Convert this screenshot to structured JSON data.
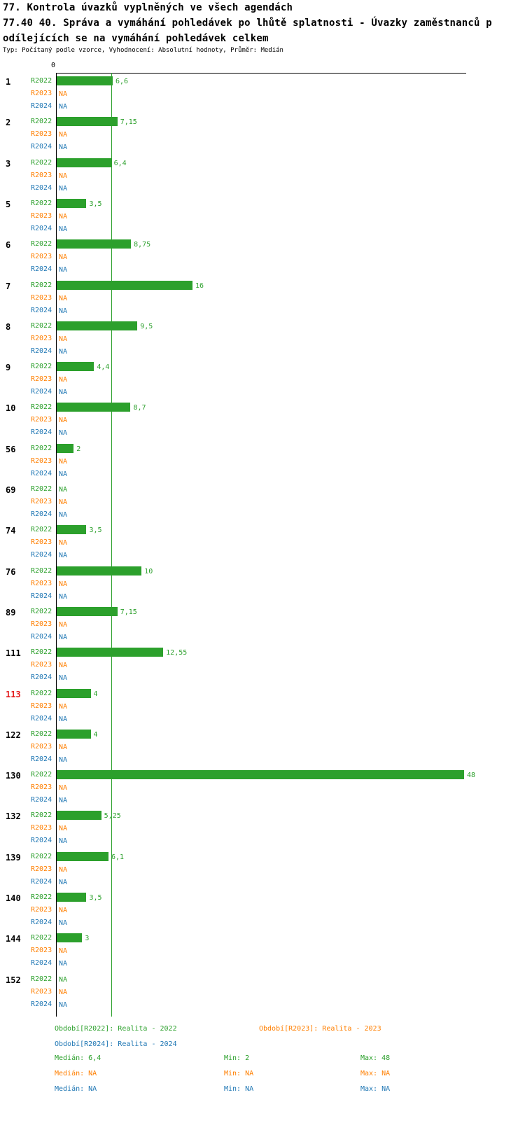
{
  "header": {
    "line1": "77. Kontrola úvazků vyplněných ve všech agendách",
    "line2": "77.40 40. Správa a vymáhání pohledávek po lhůtě splatnosti - Úvazky zaměstnanců p",
    "line3": "odílejících se na vymáhání pohledávek celkem",
    "meta": "Typ: Počítaný podle vzorce, Vyhodnocení: Absolutní hodnoty, Průměr: Medián"
  },
  "colors": {
    "r2022": "#2ca02c",
    "r2023": "#ff7f00",
    "r2024": "#1f77b4",
    "highlight": "#e31a1c",
    "axis": "#000000",
    "text": "#000000"
  },
  "axis": {
    "zero_label": "0"
  },
  "chart_data": {
    "type": "bar",
    "orientation": "horizontal",
    "series": [
      "R2022",
      "R2023",
      "R2024"
    ],
    "na_label": "NA",
    "median_reference_line": 6.4,
    "value_axis": {
      "min": 0,
      "shown_ticks": [
        "0"
      ],
      "approx_max_drawn": 48
    },
    "groups": [
      {
        "id": "1",
        "highlight": false,
        "R2022": 6.6,
        "R2022_label": "6,6"
      },
      {
        "id": "2",
        "highlight": false,
        "R2022": 7.15,
        "R2022_label": "7,15"
      },
      {
        "id": "3",
        "highlight": false,
        "R2022": 6.4,
        "R2022_label": "6,4"
      },
      {
        "id": "5",
        "highlight": false,
        "R2022": 3.5,
        "R2022_label": "3,5"
      },
      {
        "id": "6",
        "highlight": false,
        "R2022": 8.75,
        "R2022_label": "8,75"
      },
      {
        "id": "7",
        "highlight": false,
        "R2022": 16,
        "R2022_label": "16"
      },
      {
        "id": "8",
        "highlight": false,
        "R2022": 9.5,
        "R2022_label": "9,5"
      },
      {
        "id": "9",
        "highlight": false,
        "R2022": 4.4,
        "R2022_label": "4,4"
      },
      {
        "id": "10",
        "highlight": false,
        "R2022": 8.7,
        "R2022_label": "8,7"
      },
      {
        "id": "56",
        "highlight": false,
        "R2022": 2,
        "R2022_label": "2"
      },
      {
        "id": "69",
        "highlight": false,
        "R2022": null,
        "R2022_label": "NA"
      },
      {
        "id": "74",
        "highlight": false,
        "R2022": 3.5,
        "R2022_label": "3,5"
      },
      {
        "id": "76",
        "highlight": false,
        "R2022": 10,
        "R2022_label": "10"
      },
      {
        "id": "89",
        "highlight": false,
        "R2022": 7.15,
        "R2022_label": "7,15"
      },
      {
        "id": "111",
        "highlight": false,
        "R2022": 12.55,
        "R2022_label": "12,55"
      },
      {
        "id": "113",
        "highlight": true,
        "R2022": 4,
        "R2022_label": "4"
      },
      {
        "id": "122",
        "highlight": false,
        "R2022": 4,
        "R2022_label": "4"
      },
      {
        "id": "130",
        "highlight": false,
        "R2022": 48,
        "R2022_label": "48"
      },
      {
        "id": "132",
        "highlight": false,
        "R2022": 5.25,
        "R2022_label": "5,25"
      },
      {
        "id": "139",
        "highlight": false,
        "R2022": 6.1,
        "R2022_label": "6,1"
      },
      {
        "id": "140",
        "highlight": false,
        "R2022": 3.5,
        "R2022_label": "3,5"
      },
      {
        "id": "144",
        "highlight": false,
        "R2022": 3,
        "R2022_label": "3"
      },
      {
        "id": "152",
        "highlight": false,
        "R2022": null,
        "R2022_label": "NA"
      }
    ],
    "summary": {
      "R2022": {
        "median": 6.4,
        "min": 2,
        "max": 48
      },
      "R2023": {
        "median": null,
        "min": null,
        "max": null
      },
      "R2024": {
        "median": null,
        "min": null,
        "max": null
      }
    }
  },
  "legend": {
    "r2022": "Období[R2022]: Realita - 2022",
    "r2023": "Období[R2023]: Realita - 2023",
    "r2024": "Období[R2024]: Realita - 2024"
  },
  "stats": {
    "r2022": {
      "median": "Medián: 6,4",
      "min": "Min: 2",
      "max": "Max: 48"
    },
    "r2023": {
      "median": "Medián: NA",
      "min": "Min: NA",
      "max": "Max: NA"
    },
    "r2024": {
      "median": "Medián: NA",
      "min": "Min: NA",
      "max": "Max: NA"
    }
  }
}
